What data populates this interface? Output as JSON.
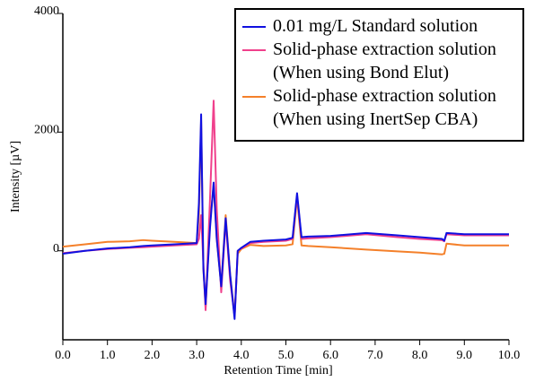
{
  "chart_data": {
    "type": "line",
    "xlabel": "Retention Time [min]",
    "ylabel": "Intensity [µV]",
    "x": [
      0,
      0.5,
      1.0,
      1.5,
      1.8,
      2.0,
      2.5,
      3.0,
      3.05,
      3.1,
      3.15,
      3.2,
      3.3,
      3.38,
      3.45,
      3.55,
      3.65,
      3.75,
      3.85,
      3.92,
      4.0,
      4.2,
      4.5,
      5.0,
      5.15,
      5.25,
      5.35,
      5.5,
      6.0,
      6.8,
      7.5,
      8.0,
      8.5,
      8.55,
      8.6,
      9.0,
      10.0
    ],
    "series": [
      {
        "name": "Solid-phase extraction solution\n(When using InertSep CBA)",
        "color": "#f4802a",
        "values": [
          70,
          110,
          150,
          160,
          180,
          170,
          150,
          130,
          600,
          2200,
          -300,
          -950,
          500,
          1100,
          200,
          -600,
          600,
          -400,
          -1100,
          -50,
          30,
          100,
          80,
          90,
          110,
          900,
          90,
          80,
          60,
          20,
          -10,
          -30,
          -60,
          -50,
          120,
          90,
          90
        ]
      },
      {
        "name": "Solid-phase extraction solution\n(When using Bond Elut)",
        "color": "#f0408c",
        "values": [
          -40,
          0,
          30,
          50,
          60,
          70,
          90,
          110,
          200,
          600,
          -200,
          -1000,
          900,
          2530,
          700,
          -700,
          500,
          -500,
          -1100,
          0,
          40,
          130,
          150,
          170,
          200,
          930,
          200,
          210,
          230,
          280,
          230,
          200,
          180,
          160,
          280,
          260,
          260
        ]
      },
      {
        "name": "0.01 mg/L Standard solution",
        "color": "#1010e0",
        "values": [
          -50,
          0,
          40,
          60,
          80,
          90,
          110,
          130,
          800,
          2300,
          -300,
          -900,
          400,
          1150,
          200,
          -600,
          550,
          -400,
          -1150,
          0,
          50,
          150,
          170,
          190,
          220,
          970,
          230,
          240,
          250,
          300,
          260,
          230,
          200,
          170,
          300,
          280,
          280
        ]
      }
    ],
    "xlim": [
      0,
      10
    ],
    "xticks": [
      {
        "value": 0,
        "label": "0.0"
      },
      {
        "value": 1,
        "label": "1.0"
      },
      {
        "value": 2,
        "label": "2.0"
      },
      {
        "value": 3,
        "label": "3.0"
      },
      {
        "value": 4,
        "label": "4.0"
      },
      {
        "value": 5,
        "label": "5.0"
      },
      {
        "value": 6,
        "label": "6.0"
      },
      {
        "value": 7,
        "label": "7.0"
      },
      {
        "value": 8,
        "label": "8.0"
      },
      {
        "value": 9,
        "label": "9.0"
      },
      {
        "value": 10,
        "label": "10.0"
      }
    ],
    "ylim": [
      -1500,
      4000
    ],
    "yticks": [
      0,
      2000,
      4000
    ],
    "legend": "top-right"
  }
}
